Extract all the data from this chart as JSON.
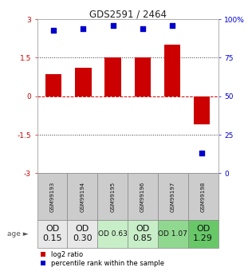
{
  "title": "GDS2591 / 2464",
  "samples": [
    "GSM99193",
    "GSM99194",
    "GSM99195",
    "GSM99196",
    "GSM99197",
    "GSM99198"
  ],
  "log2_ratios": [
    0.85,
    1.1,
    1.5,
    1.52,
    2.0,
    -1.1
  ],
  "percentile_ranks": [
    93,
    94,
    96,
    94,
    96,
    13
  ],
  "bar_color": "#cc0000",
  "dot_color": "#0000cc",
  "ylim": [
    -3,
    3
  ],
  "left_yticks": [
    -3,
    -1.5,
    0,
    1.5,
    3
  ],
  "left_yticklabels": [
    "-3",
    "-1.5",
    "0",
    "1.5",
    "3"
  ],
  "right_yticks": [
    0,
    25,
    50,
    75,
    100
  ],
  "right_yticklabels": [
    "0",
    "25",
    "50",
    "75",
    "100%"
  ],
  "dotted_lines_black": [
    1.5,
    -1.5
  ],
  "dashed_line_red": 0,
  "age_labels": [
    "OD\n0.15",
    "OD\n0.30",
    "OD 0.63",
    "OD\n0.85",
    "OD 1.07",
    "OD\n1.29"
  ],
  "age_colors": [
    "#e8e8e8",
    "#e8e8e8",
    "#c8eec8",
    "#c8eec8",
    "#90d890",
    "#68c868"
  ],
  "age_fontsizes": [
    8,
    8,
    6.5,
    8,
    6.5,
    8
  ],
  "sample_bg_color": "#cccccc",
  "legend_red_label": "log2 ratio",
  "legend_blue_label": "percentile rank within the sample",
  "background_color": "#ffffff"
}
